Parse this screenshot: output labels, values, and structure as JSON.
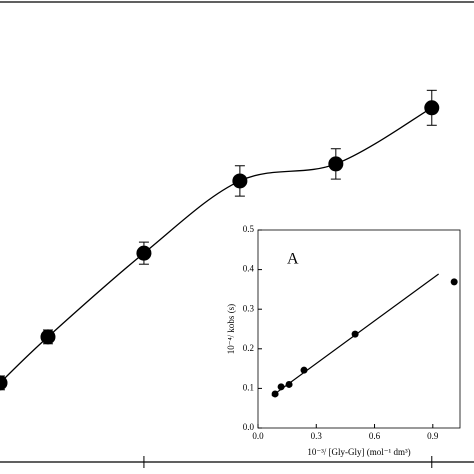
{
  "chart_data": [
    {
      "type": "line",
      "x": [
        0,
        0.5,
        1.5,
        2.5,
        3.5,
        4.5
      ],
      "xlim": [
        0,
        4.94
      ],
      "xticks": [
        1.5,
        4.5
      ],
      "ylim": [
        0,
        100
      ],
      "values": [
        17.2,
        27.2,
        45.4,
        61.1,
        64.8,
        77.0
      ],
      "errors": [
        1.5,
        1.5,
        2.4,
        3.3,
        3.3,
        3.8
      ],
      "color": "#000000"
    },
    {
      "type": "scatter",
      "annotation": "A",
      "xlabel": "10⁻³/ [Gly-Gly] (mol⁻¹ dm³)",
      "ylabel": "10⁻⁴/ kobs (s)",
      "x": [
        0.088,
        0.119,
        0.16,
        0.237,
        0.5,
        1.01
      ],
      "values": [
        0.086,
        0.104,
        0.11,
        0.146,
        0.237,
        0.369
      ],
      "fit": {
        "x": [
          0.072,
          0.93
        ],
        "values": [
          0.081,
          0.389
        ]
      },
      "xlim": [
        0,
        1.04
      ],
      "ylim": [
        0,
        0.5
      ],
      "xticks": [
        {
          "value": 0,
          "label": "0.0"
        },
        0.3,
        0.6,
        0.9
      ],
      "yticks": [
        {
          "value": 0,
          "label": "0.0"
        },
        0.1,
        0.2,
        0.3,
        0.4,
        0.5
      ],
      "color": "#000000"
    }
  ]
}
